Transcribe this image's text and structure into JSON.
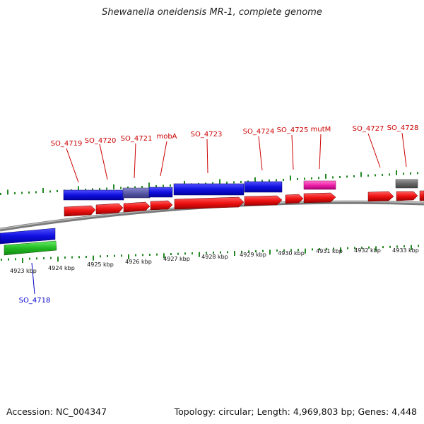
{
  "title": "Shewanella oneidensis MR-1, complete genome",
  "footer": {
    "accession": "Accession: NC_004347",
    "summary": "Topology: circular; Length: 4,969,803 bp; Genes: 4,448"
  },
  "colors": {
    "forward_cds": "#1010e0",
    "forward_highlight": "#5a5aa8",
    "reverse_cds": "#ee1111",
    "rna": "#ee22aa",
    "other": "#666666",
    "green_feature": "#22bb22",
    "label_red": "#cc0000",
    "label_blue": "#0000cc",
    "tick": "#228822",
    "backbone": "#888888"
  },
  "kbp_labels": [
    "4923 kbp",
    "4924 kbp",
    "4925 kbp",
    "4926 kbp",
    "4927 kbp",
    "4928 kbp",
    "4929 kbp",
    "4930 kbp",
    "4931 kbp",
    "4932 kbp",
    "4933 kbp"
  ],
  "gene_labels": [
    {
      "text": "SO_4719",
      "color": "red"
    },
    {
      "text": "SO_4720",
      "color": "red"
    },
    {
      "text": "SO_4721",
      "color": "red"
    },
    {
      "text": "mobA",
      "color": "red"
    },
    {
      "text": "SO_4723",
      "color": "red"
    },
    {
      "text": "SO_4724",
      "color": "red"
    },
    {
      "text": "SO_4725",
      "color": "red"
    },
    {
      "text": "mutM",
      "color": "red"
    },
    {
      "text": "SO_4727",
      "color": "red"
    },
    {
      "text": "SO_4728",
      "color": "red"
    },
    {
      "text": "SO_4718",
      "color": "blue"
    }
  ]
}
